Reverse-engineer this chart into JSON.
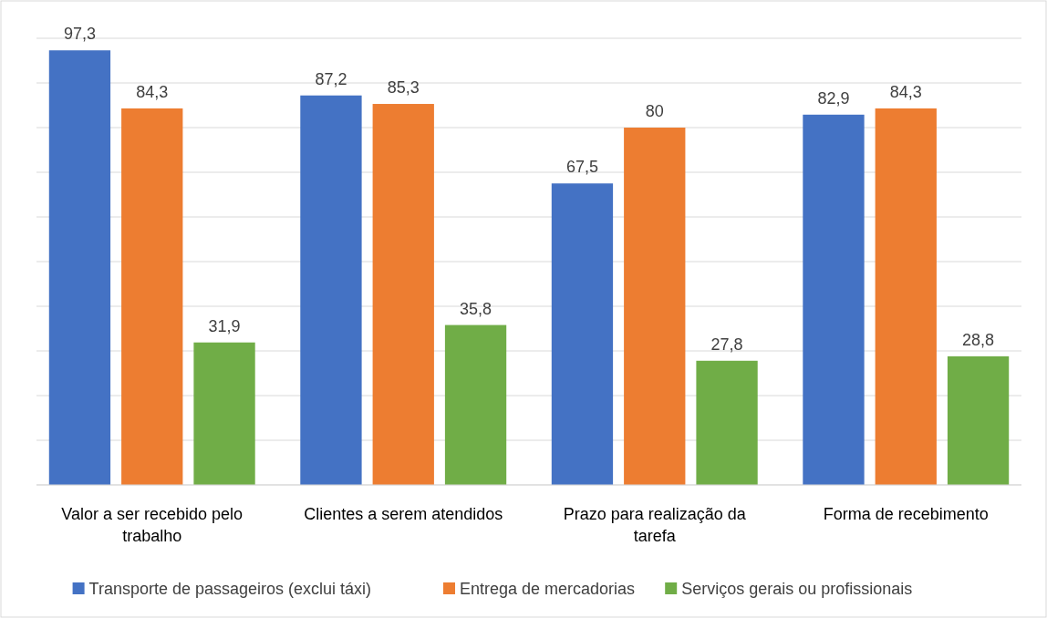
{
  "chart_data": {
    "type": "bar",
    "categories": [
      "Valor a ser recebido pelo trabalho",
      "Clientes a serem atendidos",
      "Prazo para realização da tarefa",
      "Forma de recebimento"
    ],
    "series": [
      {
        "name": "Transporte de passageiros (exclui táxi)",
        "color": "#4472c4",
        "values": [
          97.3,
          87.2,
          67.5,
          82.9
        ],
        "value_labels": [
          "97,3",
          "87,2",
          "67,5",
          "82,9"
        ]
      },
      {
        "name": "Entrega de mercadorias",
        "color": "#ed7d31",
        "values": [
          84.3,
          85.3,
          80,
          84.3
        ],
        "value_labels": [
          "84,3",
          "85,3",
          "80",
          "84,3"
        ]
      },
      {
        "name": "Serviços gerais ou profissionais",
        "color": "#70ad47",
        "values": [
          31.9,
          35.8,
          27.8,
          28.8
        ],
        "value_labels": [
          "31,9",
          "35,8",
          "27,8",
          "28,8"
        ]
      }
    ],
    "ylim": [
      0,
      100
    ],
    "yticks": [
      {
        "value": 0,
        "label": null
      },
      {
        "value": 10,
        "label": null
      },
      {
        "value": 20,
        "label": null
      },
      {
        "value": 30,
        "label": null
      },
      {
        "value": 40,
        "label": null
      },
      {
        "value": 50,
        "label": null
      },
      {
        "value": 60,
        "label": null
      },
      {
        "value": 70,
        "label": null
      },
      {
        "value": 80,
        "label": null
      },
      {
        "value": 90,
        "label": null
      },
      {
        "value": 100,
        "label": null
      }
    ],
    "tick_labels": "x",
    "grid": "y",
    "legend": "bottom"
  }
}
